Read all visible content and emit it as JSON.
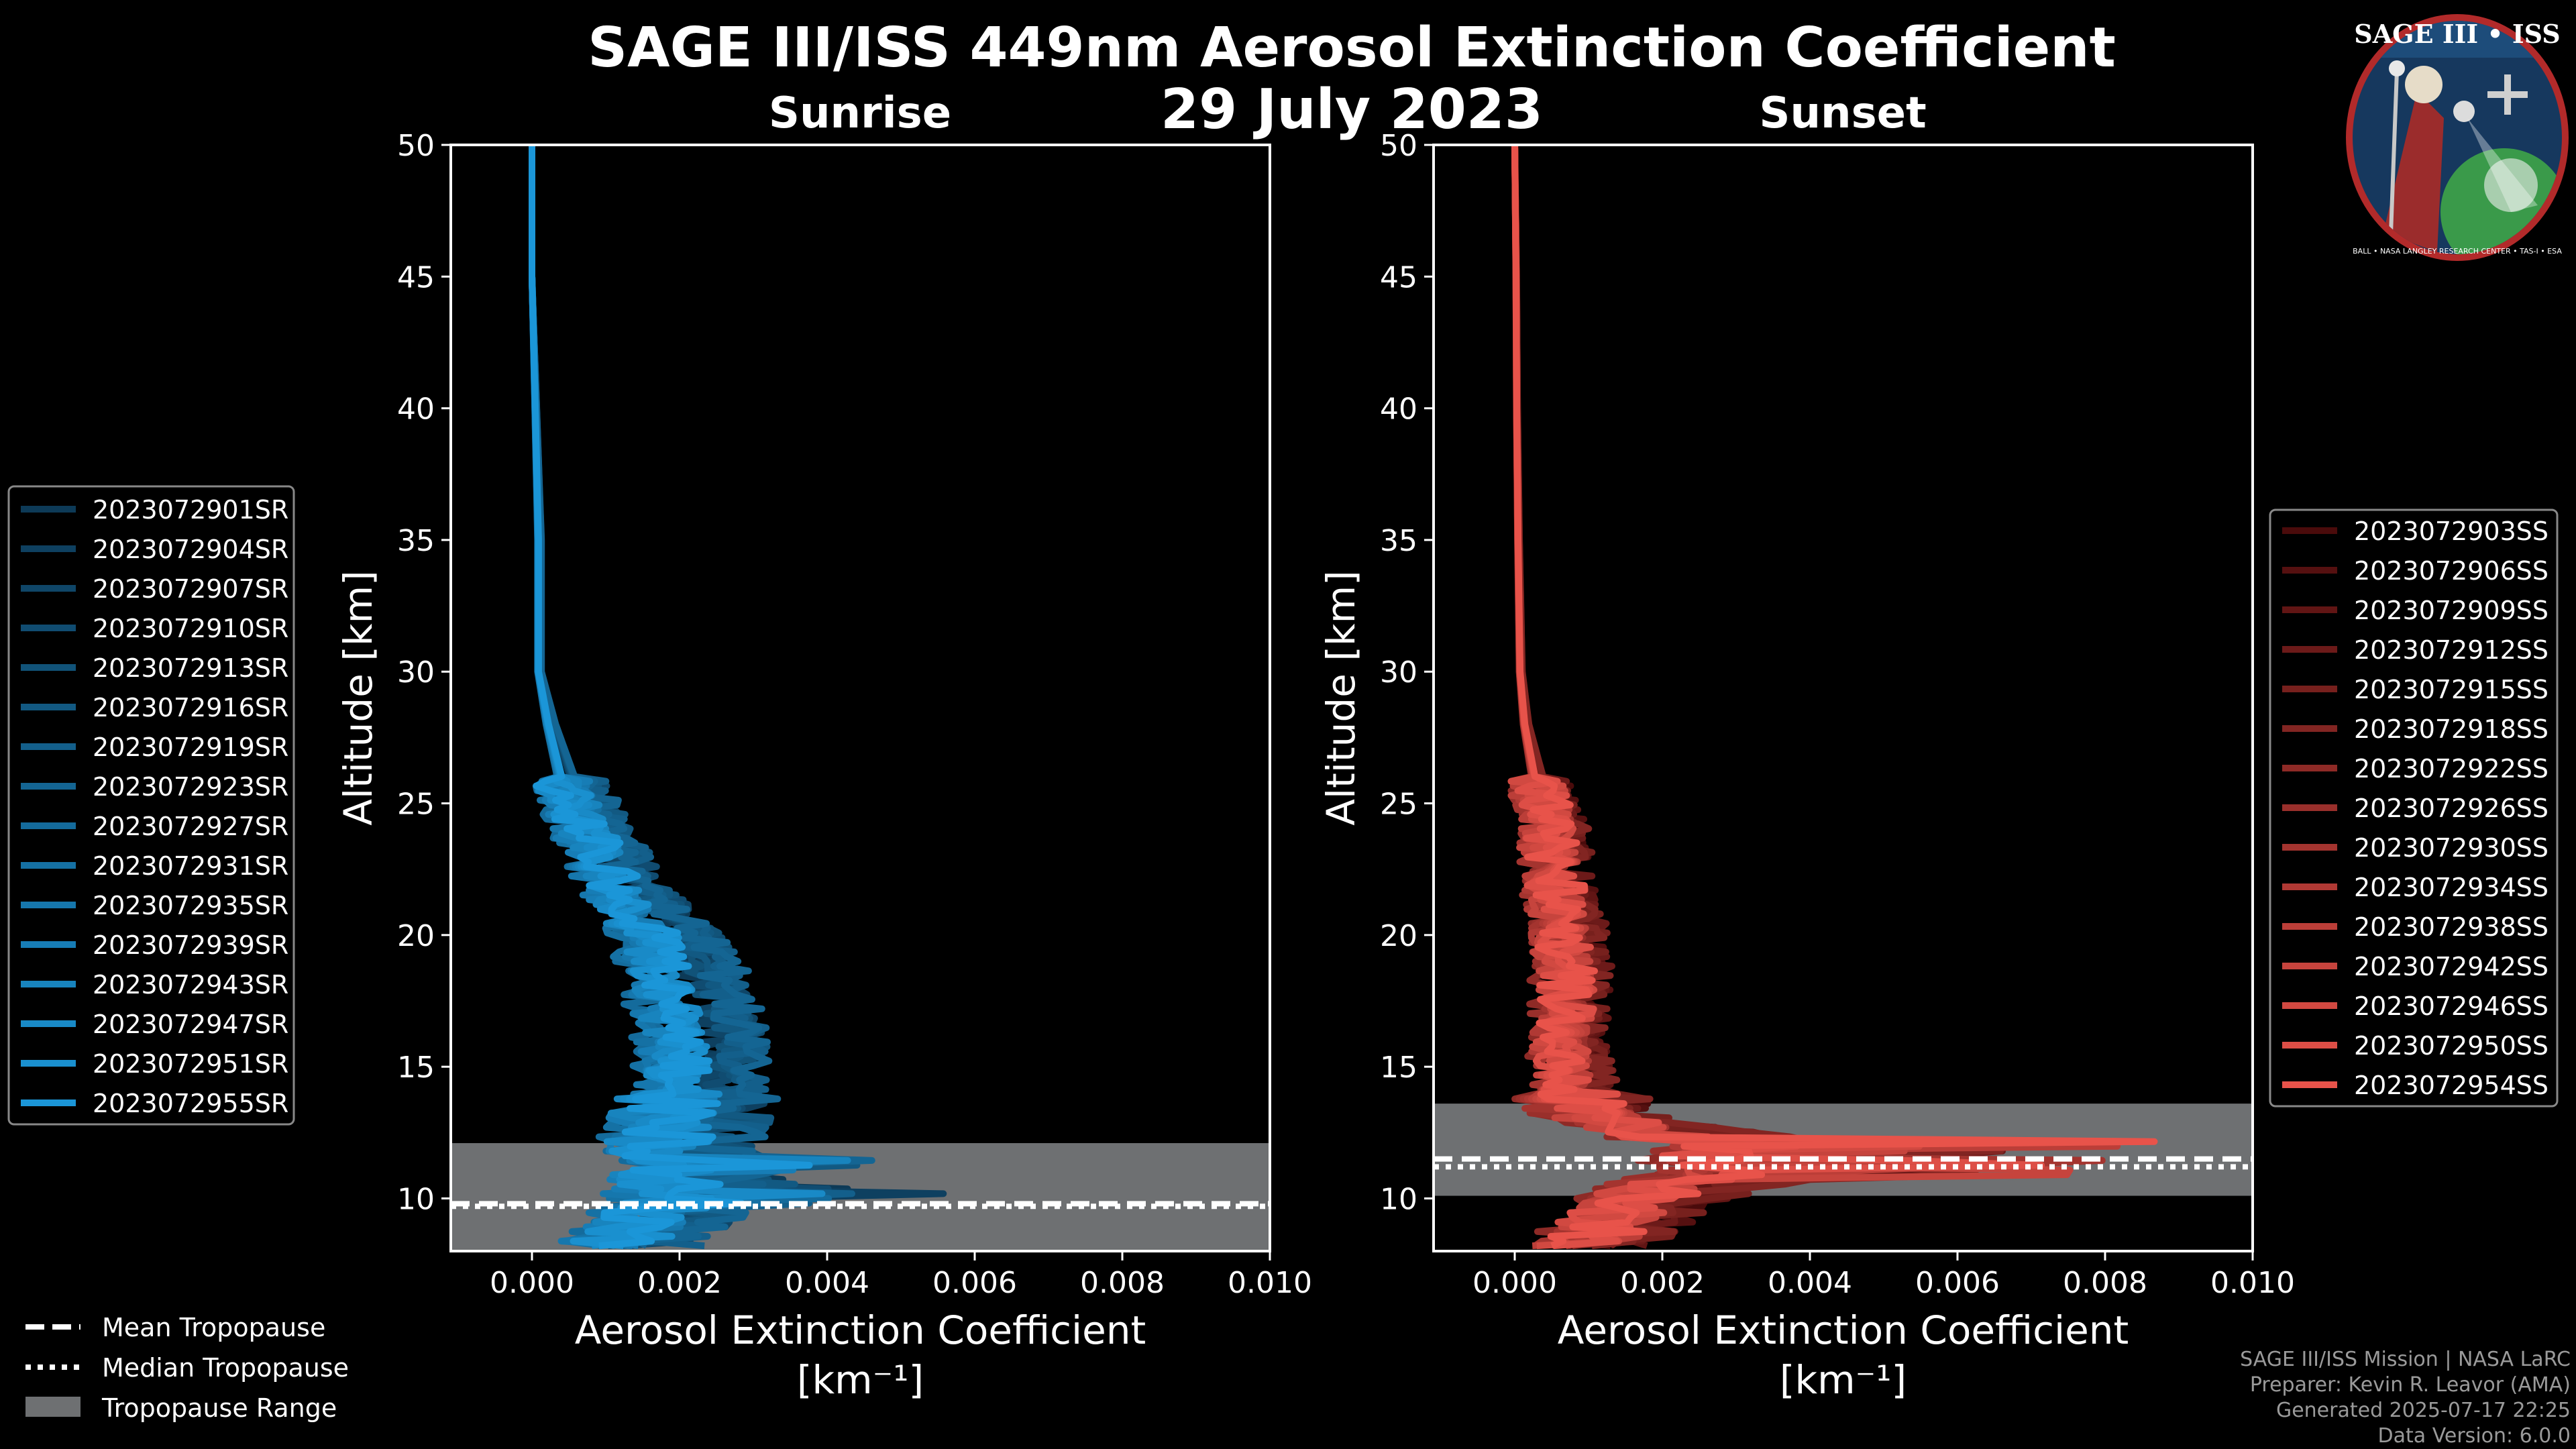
{
  "title": "SAGE III/ISS 449nm Aerosol Extinction Coefficient",
  "date": "29 July 2023",
  "logo": {
    "text": "SAGE III • ISS",
    "ring_text": "BALL • NASA LANGLEY RESEARCH CENTER • TAS-I • ESA"
  },
  "credits": {
    "line1": "SAGE III/ISS Mission | NASA LaRC",
    "line2": "Preparer: Kevin R. Leavor (AMA)",
    "line3": "Generated 2025-07-17 22:25",
    "line4": "Data Version: 6.0.0"
  },
  "tropopause_legend": {
    "mean": "Mean Tropopause",
    "median": "Median Tropopause",
    "range": "Tropopause Range"
  },
  "chart_data": [
    {
      "type": "line",
      "subtitle": "Sunrise",
      "xlabel": "Aerosol Extinction Coefficient",
      "xunit": "[km⁻¹]",
      "ylabel": "Altitude [km]",
      "xlim": [
        -0.0011,
        0.01
      ],
      "ylim": [
        8,
        50
      ],
      "xticks": [
        "0.000",
        "0.002",
        "0.004",
        "0.006",
        "0.008",
        "0.010"
      ],
      "xtick_values": [
        0,
        0.002,
        0.004,
        0.006,
        0.008,
        0.01
      ],
      "yticks": [
        10,
        15,
        20,
        25,
        30,
        35,
        40,
        45,
        50
      ],
      "tropopause": {
        "range": [
          8,
          12.1
        ],
        "mean": 9.8,
        "median": 9.7
      },
      "color_dark": "#0d3a57",
      "color_light": "#1b96d8",
      "series": [
        "2023072901SR",
        "2023072904SR",
        "2023072907SR",
        "2023072910SR",
        "2023072913SR",
        "2023072916SR",
        "2023072919SR",
        "2023072923SR",
        "2023072927SR",
        "2023072931SR",
        "2023072935SR",
        "2023072939SR",
        "2023072943SR",
        "2023072947SR",
        "2023072951SR",
        "2023072955SR"
      ],
      "profile": {
        "altitude": [
          50,
          45,
          40,
          35,
          30,
          28,
          26,
          24,
          22,
          20,
          18,
          16,
          14,
          12,
          11,
          10,
          9,
          8.3
        ],
        "value": [
          0.0,
          0.0,
          5e-05,
          0.0001,
          0.0001,
          0.00025,
          0.00045,
          0.0008,
          0.0012,
          0.0018,
          0.0021,
          0.0023,
          0.0022,
          0.0019,
          0.0021,
          0.002,
          0.0017,
          0.0013
        ]
      }
    },
    {
      "type": "line",
      "subtitle": "Sunset",
      "xlabel": "Aerosol Extinction Coefficient",
      "xunit": "[km⁻¹]",
      "ylabel": "Altitude [km]",
      "xlim": [
        -0.0011,
        0.01
      ],
      "ylim": [
        8,
        50
      ],
      "xticks": [
        "0.000",
        "0.002",
        "0.004",
        "0.006",
        "0.008",
        "0.010"
      ],
      "xtick_values": [
        0,
        0.002,
        0.004,
        0.006,
        0.008,
        0.01
      ],
      "yticks": [
        10,
        15,
        20,
        25,
        30,
        35,
        40,
        45,
        50
      ],
      "tropopause": {
        "range": [
          10.1,
          13.6
        ],
        "mean": 11.5,
        "median": 11.2
      },
      "color_dark": "#4a0b0b",
      "color_light": "#e8534a",
      "series": [
        "2023072903SS",
        "2023072906SS",
        "2023072909SS",
        "2023072912SS",
        "2023072915SS",
        "2023072918SS",
        "2023072922SS",
        "2023072926SS",
        "2023072930SS",
        "2023072934SS",
        "2023072938SS",
        "2023072942SS",
        "2023072946SS",
        "2023072950SS",
        "2023072954SS"
      ],
      "profile": {
        "altitude": [
          50,
          45,
          40,
          35,
          30,
          28,
          26,
          24,
          22,
          20,
          18,
          16,
          14,
          13,
          12,
          11,
          10,
          9,
          8.3
        ],
        "value": [
          0.0,
          2e-05,
          3e-05,
          5e-05,
          8e-05,
          0.00015,
          0.0003,
          0.0005,
          0.0006,
          0.0007,
          0.0008,
          0.0007,
          0.0008,
          0.0012,
          0.003,
          0.003,
          0.0018,
          0.0014,
          0.0011
        ]
      }
    }
  ]
}
